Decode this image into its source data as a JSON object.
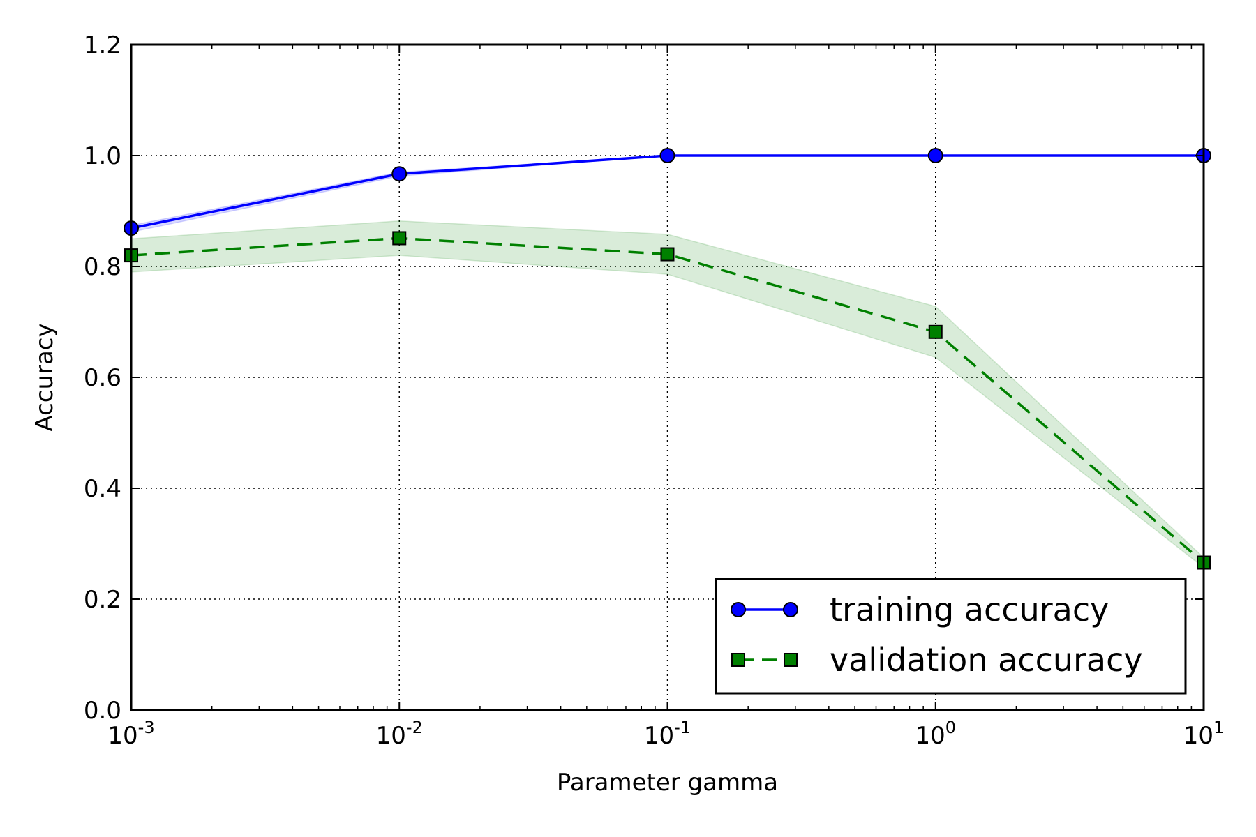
{
  "chart_data": {
    "type": "line",
    "xlabel": "Parameter gamma",
    "ylabel": "Accuracy",
    "xscale": "log",
    "xlim": [
      0.001,
      10
    ],
    "ylim": [
      0.0,
      1.2
    ],
    "x": [
      0.001,
      0.01,
      0.1,
      1,
      10
    ],
    "x_ticks": [
      {
        "value": 0.001,
        "base": "10",
        "exp": "-3"
      },
      {
        "value": 0.01,
        "base": "10",
        "exp": "-2"
      },
      {
        "value": 0.1,
        "base": "10",
        "exp": "-1"
      },
      {
        "value": 1,
        "base": "10",
        "exp": "0"
      },
      {
        "value": 10,
        "base": "10",
        "exp": "1"
      }
    ],
    "y_ticks": [
      {
        "value": 0.0,
        "label": "0.0"
      },
      {
        "value": 0.2,
        "label": "0.2"
      },
      {
        "value": 0.4,
        "label": "0.4"
      },
      {
        "value": 0.6,
        "label": "0.6"
      },
      {
        "value": 0.8,
        "label": "0.8"
      },
      {
        "value": 1.0,
        "label": "1.0"
      },
      {
        "value": 1.2,
        "label": "1.2"
      }
    ],
    "grid": true,
    "grid_style": "dotted",
    "legend_position": "lower-right",
    "series": [
      {
        "name": "training accuracy",
        "values": [
          0.869,
          0.967,
          1.0,
          1.0,
          1.0
        ],
        "upper": [
          0.874,
          0.97,
          1.0,
          1.0,
          1.0
        ],
        "lower": [
          0.862,
          0.963,
          1.0,
          1.0,
          1.0
        ],
        "color": "#0000ff",
        "line_style": "solid",
        "marker": "circle"
      },
      {
        "name": "validation accuracy",
        "values": [
          0.82,
          0.851,
          0.822,
          0.682,
          0.266
        ],
        "upper": [
          0.85,
          0.882,
          0.858,
          0.728,
          0.275
        ],
        "lower": [
          0.79,
          0.82,
          0.786,
          0.636,
          0.257
        ],
        "color": "#008000",
        "line_style": "dashed",
        "marker": "square"
      }
    ]
  }
}
